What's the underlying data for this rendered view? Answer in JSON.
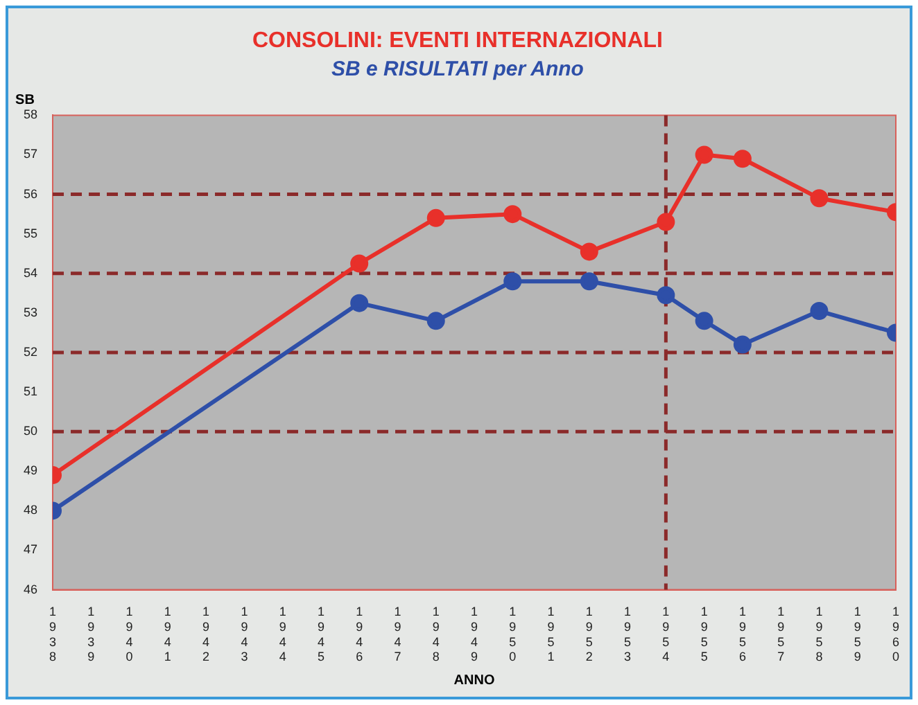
{
  "chart_data": {
    "type": "line",
    "title": "CONSOLINI: EVENTI INTERNAZIONALI",
    "subtitle": "SB e RISULTATI per Anno",
    "xlabel": "ANNO",
    "ylabel": "SB",
    "x": [
      1938,
      1946,
      1948,
      1950,
      1952,
      1954,
      1955,
      1956,
      1958,
      1960
    ],
    "series": [
      {
        "color": "#e8302a",
        "values": [
          48.9,
          54.25,
          55.4,
          55.5,
          54.55,
          55.3,
          57.0,
          56.9,
          55.9,
          55.55
        ]
      },
      {
        "color": "#2e4fa8",
        "values": [
          48.0,
          53.25,
          52.8,
          53.8,
          53.8,
          53.45,
          52.8,
          52.2,
          53.05,
          52.5
        ]
      }
    ],
    "xlim": [
      1938,
      1960
    ],
    "xticks": [
      1938,
      1939,
      1940,
      1941,
      1942,
      1943,
      1944,
      1945,
      1946,
      1947,
      1948,
      1949,
      1950,
      1951,
      1952,
      1953,
      1954,
      1955,
      1956,
      1957,
      1958,
      1959,
      1960
    ],
    "ylim": [
      46,
      58
    ],
    "yticks": [
      46,
      47,
      48,
      49,
      50,
      51,
      52,
      53,
      54,
      55,
      56,
      57,
      58
    ],
    "ref_lines": [
      {
        "axis": "y",
        "value": 50,
        "color": "#8b2a2a",
        "line_style": "dashed"
      },
      {
        "axis": "y",
        "value": 52,
        "color": "#8b2a2a",
        "line_style": "dashed"
      },
      {
        "axis": "y",
        "value": 54,
        "color": "#8b2a2a",
        "line_style": "dashed"
      },
      {
        "axis": "y",
        "value": 56,
        "color": "#8b2a2a",
        "line_style": "dashed"
      },
      {
        "axis": "x",
        "value": 1954,
        "color": "#8b2a2a",
        "line_style": "dashed"
      }
    ],
    "grid": false,
    "legend": false,
    "marker": "circle",
    "line_style": "solid"
  }
}
